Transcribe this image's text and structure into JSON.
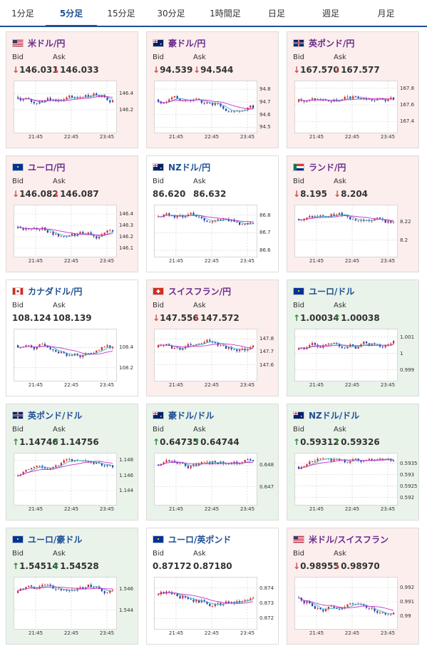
{
  "tabs": [
    {
      "label": "1分足",
      "active": false
    },
    {
      "label": "5分足",
      "active": true
    },
    {
      "label": "15分足",
      "active": false
    },
    {
      "label": "30分足",
      "active": false
    },
    {
      "label": "1時間足",
      "active": false
    },
    {
      "label": "日足",
      "active": false
    },
    {
      "label": "週足",
      "active": false
    },
    {
      "label": "月足",
      "active": false
    }
  ],
  "labels": {
    "bid": "Bid",
    "ask": "Ask"
  },
  "time_labels": [
    "21:45",
    "22:45",
    "23:45"
  ],
  "pairs": [
    {
      "name": "米ドル/円",
      "trend": "down",
      "bid": "146.031",
      "ask": "146.033",
      "bid_arrow": "↓",
      "ask_arrow": "↓",
      "yticks": [
        "146.4",
        "146.2"
      ],
      "ylim": [
        145.95,
        146.52
      ],
      "flag": "us",
      "seed": 1
    },
    {
      "name": "豪ドル/円",
      "trend": "down",
      "bid": "94.539",
      "ask": "94.544",
      "bid_arrow": "↓",
      "ask_arrow": "↓",
      "yticks": [
        "94.8",
        "94.7",
        "94.6",
        "94.5"
      ],
      "ylim": [
        94.48,
        94.84
      ],
      "flag": "au",
      "seed": 2
    },
    {
      "name": "英ポンド/円",
      "trend": "down",
      "bid": "167.570",
      "ask": "167.577",
      "bid_arrow": "↓",
      "ask_arrow": "↓",
      "yticks": [
        "167.8",
        "167.6",
        "167.4"
      ],
      "ylim": [
        167.3,
        167.85
      ],
      "flag": "gb",
      "seed": 3
    },
    {
      "name": "ユーロ/円",
      "trend": "down",
      "bid": "146.082",
      "ask": "146.087",
      "bid_arrow": "↓",
      "ask_arrow": "↓",
      "yticks": [
        "146.4",
        "146.3",
        "146.2",
        "146.1"
      ],
      "ylim": [
        146.05,
        146.45
      ],
      "flag": "eu",
      "seed": 4
    },
    {
      "name": "NZドル/円",
      "trend": "flat",
      "bid": "86.620",
      "ask": "86.632",
      "bid_arrow": "",
      "ask_arrow": "",
      "yticks": [
        "86.8",
        "86.7",
        "86.6"
      ],
      "ylim": [
        86.58,
        86.84
      ],
      "flag": "nz",
      "seed": 5
    },
    {
      "name": "ランド/円",
      "trend": "down",
      "bid": "8.195",
      "ask": "8.204",
      "bid_arrow": "↓",
      "ask_arrow": "↓",
      "yticks": [
        "8.22",
        "8.2"
      ],
      "ylim": [
        8.185,
        8.235
      ],
      "flag": "za",
      "seed": 6
    },
    {
      "name": "カナダドル/円",
      "trend": "flat",
      "bid": "108.124",
      "ask": "108.139",
      "bid_arrow": "",
      "ask_arrow": "",
      "yticks": [
        "108.4",
        "108.2"
      ],
      "ylim": [
        108.1,
        108.55
      ],
      "flag": "ca",
      "seed": 7
    },
    {
      "name": "スイスフラン/円",
      "trend": "down",
      "bid": "147.556",
      "ask": "147.572",
      "bid_arrow": "↓",
      "ask_arrow": "↓",
      "yticks": [
        "147.8",
        "147.7",
        "147.6"
      ],
      "ylim": [
        147.5,
        147.85
      ],
      "flag": "ch",
      "seed": 8
    },
    {
      "name": "ユーロ/ドル",
      "trend": "up",
      "bid": "1.00034",
      "ask": "1.00038",
      "bid_arrow": "↑",
      "ask_arrow": "↑",
      "yticks": [
        "1.001",
        "1",
        "0.999"
      ],
      "ylim": [
        0.9985,
        1.0013
      ],
      "flag": "eu",
      "seed": 9
    },
    {
      "name": "英ポンド/ドル",
      "trend": "up",
      "bid": "1.14746",
      "ask": "1.14756",
      "bid_arrow": "↑",
      "ask_arrow": "↑",
      "yticks": [
        "1.148",
        "1.146",
        "1.144"
      ],
      "ylim": [
        1.1425,
        1.1485
      ],
      "flag": "gb",
      "seed": 10
    },
    {
      "name": "豪ドル/ドル",
      "trend": "up",
      "bid": "0.64735",
      "ask": "0.64744",
      "bid_arrow": "↑",
      "ask_arrow": "↑",
      "yticks": [
        "0.648",
        "0.647"
      ],
      "ylim": [
        0.6463,
        0.6484
      ],
      "flag": "au",
      "seed": 11
    },
    {
      "name": "NZドル/ドル",
      "trend": "up",
      "bid": "0.59312",
      "ask": "0.59326",
      "bid_arrow": "↑",
      "ask_arrow": "↑",
      "yticks": [
        "0.5935",
        "0.593",
        "0.5925",
        "0.592"
      ],
      "ylim": [
        0.5918,
        0.5938
      ],
      "flag": "nz",
      "seed": 12
    },
    {
      "name": "ユーロ/豪ドル",
      "trend": "up",
      "bid": "1.54514",
      "ask": "1.54528",
      "bid_arrow": "↑",
      "ask_arrow": "↑",
      "yticks": [
        "1.546",
        "1.544"
      ],
      "ylim": [
        1.5425,
        1.5468
      ],
      "flag": "eu",
      "seed": 13
    },
    {
      "name": "ユーロ/英ポンド",
      "trend": "flat",
      "bid": "0.87172",
      "ask": "0.87180",
      "bid_arrow": "",
      "ask_arrow": "",
      "yticks": [
        "0.874",
        "0.873",
        "0.872"
      ],
      "ylim": [
        0.8715,
        0.8745
      ],
      "flag": "eu",
      "seed": 14
    },
    {
      "name": "米ドル/スイスフラン",
      "trend": "down",
      "bid": "0.98955",
      "ask": "0.98970",
      "bid_arrow": "↓",
      "ask_arrow": "↓",
      "yticks": [
        "0.992",
        "0.991",
        "0.99"
      ],
      "ylim": [
        0.9893,
        0.9925
      ],
      "flag": "us",
      "seed": 15
    }
  ],
  "colors": {
    "up_candle": "#d62b2b",
    "down_candle": "#2b3fb0",
    "ma_fast": "#3cb4c8",
    "ma_slow": "#c832c8",
    "accent": "#1f4f94"
  }
}
